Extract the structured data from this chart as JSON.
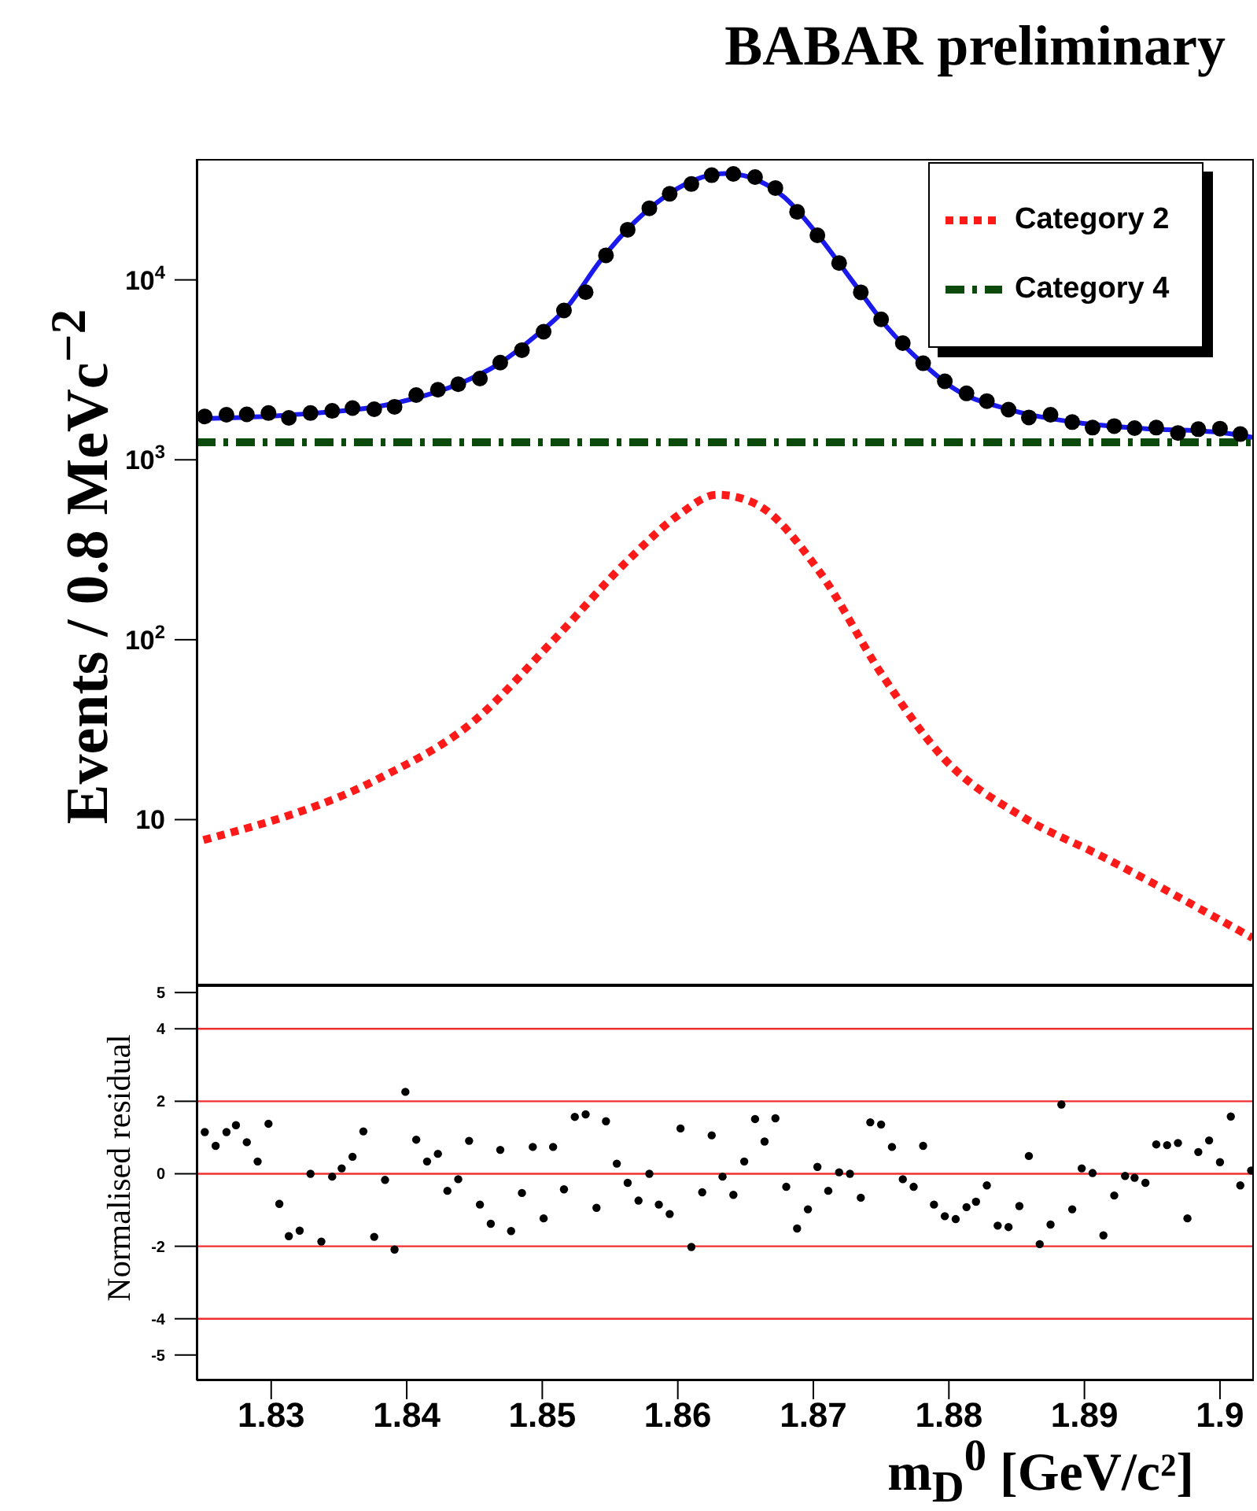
{
  "chart_data": [
    {
      "type": "line",
      "title": "BABAR preliminary",
      "ylabel": "Events / 0.8 MeVc$^{−2}$",
      "log": "y",
      "legend": "top right",
      "tick_labels": "y",
      "xlim": [
        1.8245,
        1.9025
      ],
      "xticks": [
        1.83,
        1.84,
        1.85,
        1.86,
        1.87,
        1.88,
        1.89,
        1.9
      ],
      "ylim": [
        1.2,
        47000
      ],
      "yticks": [
        {
          "value": 10,
          "label": "10"
        },
        {
          "value": 100,
          "label": "10$^{2}$"
        },
        {
          "value": 1000,
          "label": "10$^{3}$"
        },
        {
          "value": 10000,
          "label": "10$^{4}$"
        }
      ],
      "series": [
        {
          "type": "line",
          "name": "Category 4",
          "color": "#0b4a0b",
          "line_style": "dashed",
          "x": [
            1.8245,
            1.9025
          ],
          "values": [
            1250,
            1250
          ]
        },
        {
          "type": "line",
          "name": "Category 2",
          "color": "#ff1a1a",
          "line_style": "dotted",
          "x": [
            1.825,
            1.838,
            1.8449,
            1.8507,
            1.8565,
            1.86,
            1.8629,
            1.8658,
            1.8704,
            1.875,
            1.8796,
            1.8854,
            1.8912,
            1.9024
          ],
          "values": [
            7.7,
            17,
            35,
            97,
            285,
            490,
            640,
            566,
            242,
            65,
            22,
            10.4,
            6.3,
            2.2
          ]
        },
        {
          "type": "line",
          "color": "#1a1aee",
          "line_style": "solid",
          "x": [
            1.8246,
            1.8316,
            1.8392,
            1.8442,
            1.8467,
            1.8493,
            1.8518,
            1.8543,
            1.8568,
            1.8593,
            1.8618,
            1.8636,
            1.8653,
            1.8679,
            1.8704,
            1.8729,
            1.8754,
            1.8779,
            1.8804,
            1.8845,
            1.8895,
            1.8945,
            1.8996,
            1.9025
          ],
          "values": [
            1690,
            1780,
            2070,
            2710,
            3380,
            4740,
            7010,
            12800,
            20900,
            29900,
            37200,
            39000,
            37200,
            28600,
            17500,
            9800,
            5510,
            3530,
            2480,
            1900,
            1610,
            1490,
            1430,
            1330
          ]
        },
        {
          "type": "scatter",
          "color": "#000000",
          "marker": "circle",
          "x": [
            1.8251,
            1.8267,
            1.8282,
            1.8298,
            1.8313,
            1.8329,
            1.8345,
            1.836,
            1.8376,
            1.8391,
            1.8407,
            1.8423,
            1.8438,
            1.8454,
            1.8469,
            1.8485,
            1.8501,
            1.8516,
            1.8532,
            1.8547,
            1.8563,
            1.8579,
            1.8594,
            1.861,
            1.8625,
            1.8641,
            1.8657,
            1.8672,
            1.8688,
            1.8703,
            1.8719,
            1.8735,
            1.875,
            1.8766,
            1.8781,
            1.8797,
            1.8813,
            1.8828,
            1.8844,
            1.8859,
            1.8875,
            1.8891,
            1.8906,
            1.8922,
            1.8937,
            1.8953,
            1.8969,
            1.8984,
            1.9,
            1.9015
          ],
          "values": [
            1740,
            1780,
            1790,
            1820,
            1710,
            1820,
            1870,
            1940,
            1910,
            1970,
            2290,
            2450,
            2630,
            2830,
            3470,
            4070,
            5150,
            6760,
            8550,
            13700,
            19000,
            25000,
            30100,
            34100,
            38200,
            38800,
            37300,
            32400,
            23900,
            17700,
            12400,
            8530,
            6040,
            4450,
            3440,
            2730,
            2340,
            2120,
            1900,
            1720,
            1780,
            1620,
            1510,
            1540,
            1500,
            1510,
            1410,
            1480,
            1490,
            1390
          ]
        }
      ]
    },
    {
      "type": "scatter",
      "xlabel": "m$_{D}$$^{0}$ [GeV/c²]",
      "ylabel": "Normalised residual",
      "marker": "circle",
      "color": "#000000",
      "xlim": [
        1.8245,
        1.9025
      ],
      "xticks": [
        1.83,
        1.84,
        1.85,
        1.86,
        1.87,
        1.88,
        1.89,
        1.9
      ],
      "ylim": [
        -5.7,
        5.2
      ],
      "yticks": [
        -5,
        -4,
        -2,
        0,
        2,
        4,
        5
      ],
      "ref_lines": [
        {
          "axis": "y",
          "value": 4,
          "color": "#f03030"
        },
        {
          "axis": "y",
          "value": 2,
          "color": "#f03030"
        },
        {
          "axis": "y",
          "value": 0,
          "color": "#f03030"
        },
        {
          "axis": "y",
          "value": -2,
          "color": "#f03030"
        },
        {
          "axis": "y",
          "value": -4,
          "color": "#f03030"
        }
      ],
      "x": [
        1.8251,
        1.8259,
        1.8267,
        1.8274,
        1.8282,
        1.829,
        1.8298,
        1.8306,
        1.8313,
        1.8321,
        1.8329,
        1.8337,
        1.8345,
        1.8352,
        1.836,
        1.8368,
        1.8376,
        1.8384,
        1.8391,
        1.8399,
        1.8407,
        1.8415,
        1.8423,
        1.843,
        1.8438,
        1.8446,
        1.8454,
        1.8462,
        1.8469,
        1.8477,
        1.8485,
        1.8493,
        1.8501,
        1.8508,
        1.8516,
        1.8524,
        1.8532,
        1.854,
        1.8547,
        1.8555,
        1.8563,
        1.8571,
        1.8579,
        1.8586,
        1.8594,
        1.8602,
        1.861,
        1.8618,
        1.8625,
        1.8633,
        1.8641,
        1.8649,
        1.8657,
        1.8664,
        1.8672,
        1.868,
        1.8688,
        1.8696,
        1.8703,
        1.8711,
        1.8719,
        1.8727,
        1.8735,
        1.8742,
        1.875,
        1.8758,
        1.8766,
        1.8774,
        1.8781,
        1.8789,
        1.8797,
        1.8805,
        1.8813,
        1.882,
        1.8828,
        1.8836,
        1.8844,
        1.8852,
        1.8859,
        1.8867,
        1.8875,
        1.8883,
        1.8891,
        1.8898,
        1.8906,
        1.8914,
        1.8922,
        1.893,
        1.8937,
        1.8945,
        1.8953,
        1.8961,
        1.8969,
        1.8976,
        1.8984,
        1.8992,
        1.9,
        1.9008,
        1.9015,
        1.9023
      ],
      "values": [
        1.15,
        0.77,
        1.15,
        1.34,
        0.87,
        0.34,
        1.38,
        -0.83,
        -1.72,
        -1.57,
        0,
        -1.87,
        -0.08,
        0.15,
        0.47,
        1.17,
        -1.74,
        -0.17,
        -2.09,
        2.26,
        0.94,
        0.34,
        0.55,
        -0.47,
        -0.15,
        0.91,
        -0.85,
        -1.38,
        0.66,
        -1.58,
        -0.53,
        0.74,
        -1.23,
        0.74,
        -0.43,
        1.57,
        1.64,
        -0.94,
        1.45,
        0.28,
        -0.25,
        -0.74,
        0,
        -0.85,
        -1.11,
        1.25,
        -2.02,
        -0.51,
        1.06,
        -0.08,
        -0.58,
        0.34,
        1.51,
        0.89,
        1.53,
        -0.36,
        -1.51,
        -0.98,
        0.19,
        -0.47,
        0.04,
        0,
        -0.66,
        1.42,
        1.36,
        0.74,
        -0.15,
        -0.36,
        0.77,
        -0.85,
        -1.17,
        -1.25,
        -0.92,
        -0.77,
        -0.32,
        -1.43,
        -1.47,
        -0.89,
        0.49,
        -1.94,
        -1.4,
        1.91,
        -0.98,
        0.15,
        0.02,
        -1.7,
        -0.6,
        -0.06,
        -0.11,
        -0.25,
        0.81,
        0.79,
        0.85,
        -1.23,
        0.6,
        0.92,
        0.32,
        1.58,
        -0.32,
        0.09
      ]
    }
  ]
}
